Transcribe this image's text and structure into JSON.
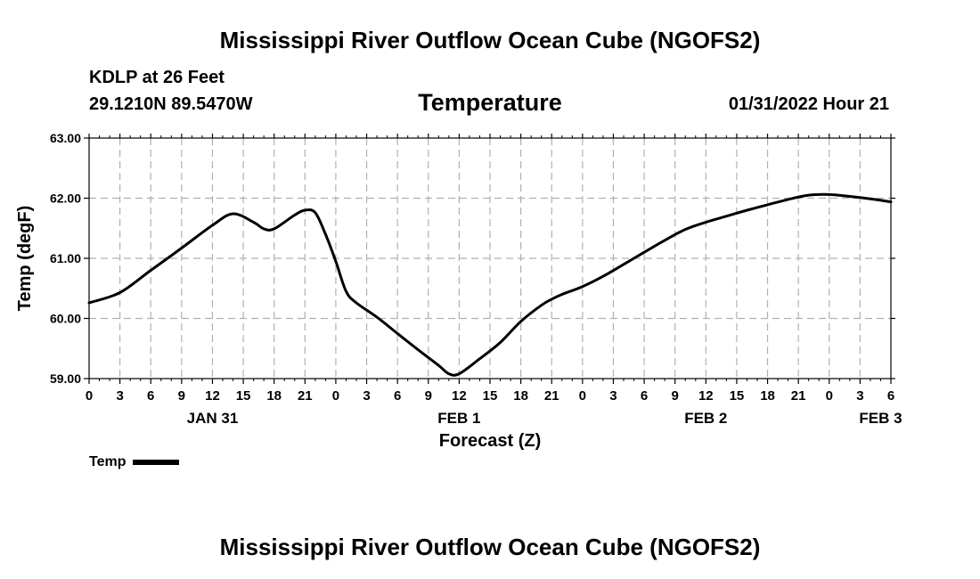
{
  "header": {
    "title": "Mississippi River Outflow Ocean Cube (NGOFS2)",
    "station": "KDLP at 26 Feet",
    "coords": "29.1210N  89.5470W",
    "variable": "Temperature",
    "datetime": "01/31/2022 Hour 21"
  },
  "footer": {
    "title": "Mississippi River Outflow Ocean Cube (NGOFS2)"
  },
  "legend": {
    "label": "Temp",
    "color": "#000000"
  },
  "chart_data": {
    "type": "line",
    "title": "Temperature",
    "xlabel": "Forecast (Z)",
    "ylabel": "Temp (degF)",
    "ylim": [
      59.0,
      63.0
    ],
    "xlim": [
      0,
      78
    ],
    "yticks": [
      "59.00",
      "60.00",
      "61.00",
      "62.00",
      "63.00"
    ],
    "xtick_labels": [
      "0",
      "3",
      "6",
      "9",
      "12",
      "15",
      "18",
      "21",
      "0",
      "3",
      "6",
      "9",
      "12",
      "15",
      "18",
      "21",
      "0",
      "3",
      "6",
      "9",
      "12",
      "15",
      "18",
      "21",
      "0",
      "3",
      "6"
    ],
    "day_labels": [
      {
        "text": "JAN 31",
        "hour": 12
      },
      {
        "text": "FEB 1",
        "hour": 36
      },
      {
        "text": "FEB 2",
        "hour": 60
      },
      {
        "text": "FEB 3",
        "hour": 77
      }
    ],
    "grid": true,
    "series": [
      {
        "name": "Temp",
        "color": "#000000",
        "x": [
          0,
          3,
          6,
          9,
          12,
          14,
          16,
          17,
          18,
          20,
          21,
          22,
          23,
          24,
          25,
          26,
          28,
          30,
          32,
          34,
          35,
          36,
          38,
          40,
          42,
          44,
          45,
          46,
          48,
          50,
          52,
          54,
          56,
          58,
          60,
          62,
          64,
          66,
          68,
          70,
          72,
          74,
          76,
          78
        ],
        "values": [
          60.26,
          60.43,
          60.8,
          61.17,
          61.55,
          61.74,
          61.6,
          61.49,
          61.49,
          61.72,
          61.8,
          61.76,
          61.4,
          60.95,
          60.45,
          60.26,
          60.02,
          59.75,
          59.48,
          59.22,
          59.08,
          59.08,
          59.33,
          59.6,
          59.95,
          60.22,
          60.32,
          60.4,
          60.53,
          60.7,
          60.9,
          61.1,
          61.3,
          61.48,
          61.6,
          61.7,
          61.8,
          61.89,
          61.98,
          62.05,
          62.06,
          62.03,
          61.99,
          61.94
        ]
      }
    ]
  }
}
